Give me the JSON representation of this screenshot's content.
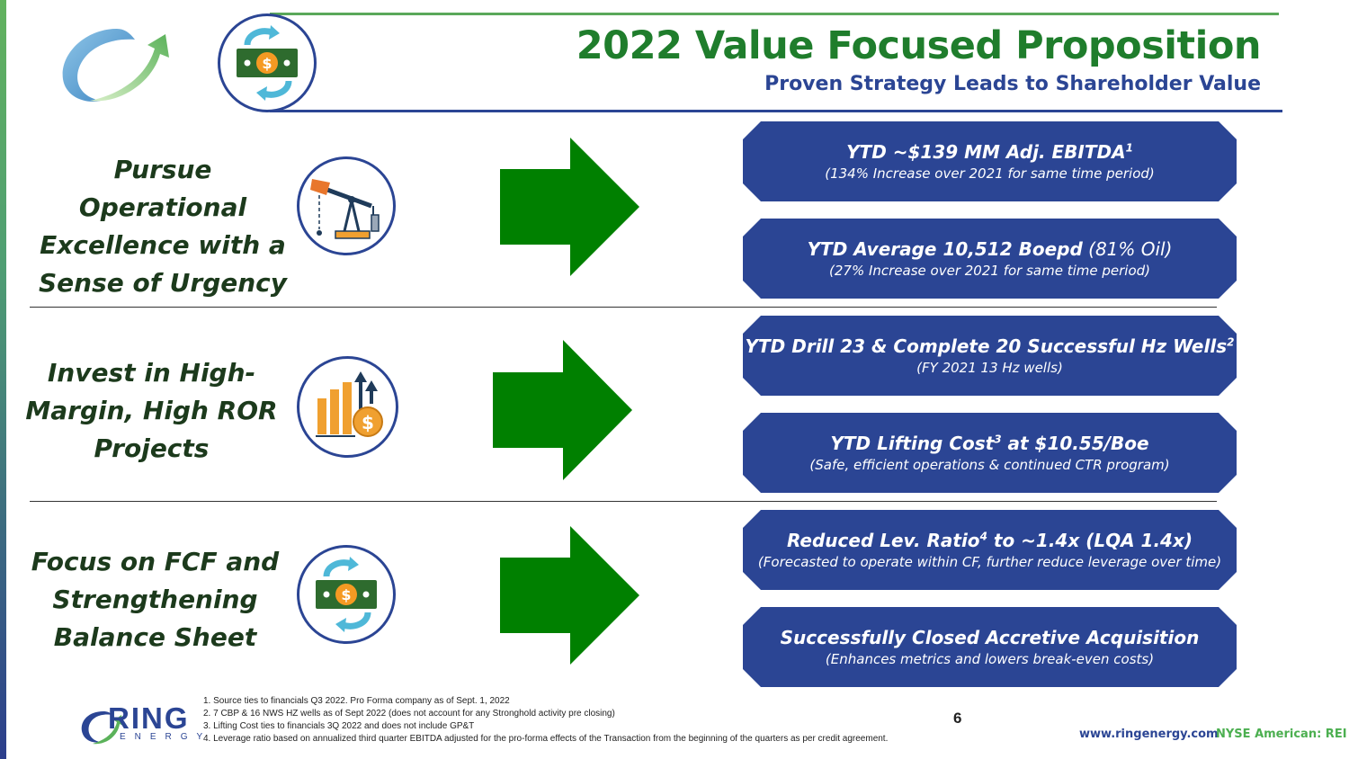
{
  "header": {
    "title": "2022 Value Focused Proposition",
    "subtitle": "Proven Strategy Leads to Shareholder Value"
  },
  "rows": [
    {
      "label_lines": [
        "Pursue Operational",
        "Excellence with a",
        "Sense of Urgency"
      ],
      "icon": "pumpjack-icon",
      "pills": [
        {
          "main": "YTD ~$139 MM Adj. EBITDA",
          "sup": "1",
          "main_after": "",
          "sub": "(134% Increase over 2021 for same time period)"
        },
        {
          "main": "YTD Average 10,512 Boepd",
          "sup": "",
          "main_after": " (81% Oil)",
          "sub": "(27% Increase over 2021 for same time period)"
        }
      ]
    },
    {
      "label_lines": [
        "Invest in High-",
        "Margin, High ROR",
        "Projects"
      ],
      "icon": "growth-chart-dollar-icon",
      "pills": [
        {
          "main": "YTD Drill 23 & Complete 20 Successful Hz Wells",
          "sup": "2",
          "main_after": "",
          "sub": "(FY 2021 13 Hz wells)"
        },
        {
          "main": "YTD Lifting Cost",
          "sup": "3",
          "main_after": " at $10.55/Boe",
          "sub": "(Safe, efficient operations & continued CTR program)"
        }
      ]
    },
    {
      "label_lines": [
        "Focus on FCF and",
        "Strengthening",
        "Balance Sheet"
      ],
      "icon": "cash-flow-icon",
      "pills": [
        {
          "main": "Reduced Lev. Ratio",
          "sup": "4",
          "main_after": " to ~1.4x  (LQA 1.4x)",
          "sub": "(Forecasted to operate within CF, further reduce leverage over time)"
        },
        {
          "main": "Successfully Closed Accretive Acquisition",
          "sup": "",
          "main_after": "",
          "sub": "(Enhances metrics and lowers break-even costs)"
        }
      ]
    }
  ],
  "footnotes": [
    "1.   Source ties to financials Q3 2022. Pro Forma company as of Sept. 1, 2022",
    "2.   7 CBP & 16 NWS HZ wells as of Sept 2022 (does not account for any Stronghold activity pre closing)",
    "3.   Lifting Cost ties to financials 3Q 2022 and does not include GP&T",
    "4.   Leverage ratio based on annualized third quarter EBITDA adjusted for the pro-forma effects of the Transaction from the beginning of the quarters as per credit agreement."
  ],
  "page_number": "6",
  "footer": {
    "logo_word": "RING",
    "logo_sub": "ENERGY",
    "url": "www.ringenergy.com",
    "ticker": "NYSE American: REI"
  },
  "colors": {
    "title_green": "#1f7d2c",
    "brand_blue": "#2b4594",
    "arrow_green": "#008000",
    "accent_green": "#4caf50"
  }
}
